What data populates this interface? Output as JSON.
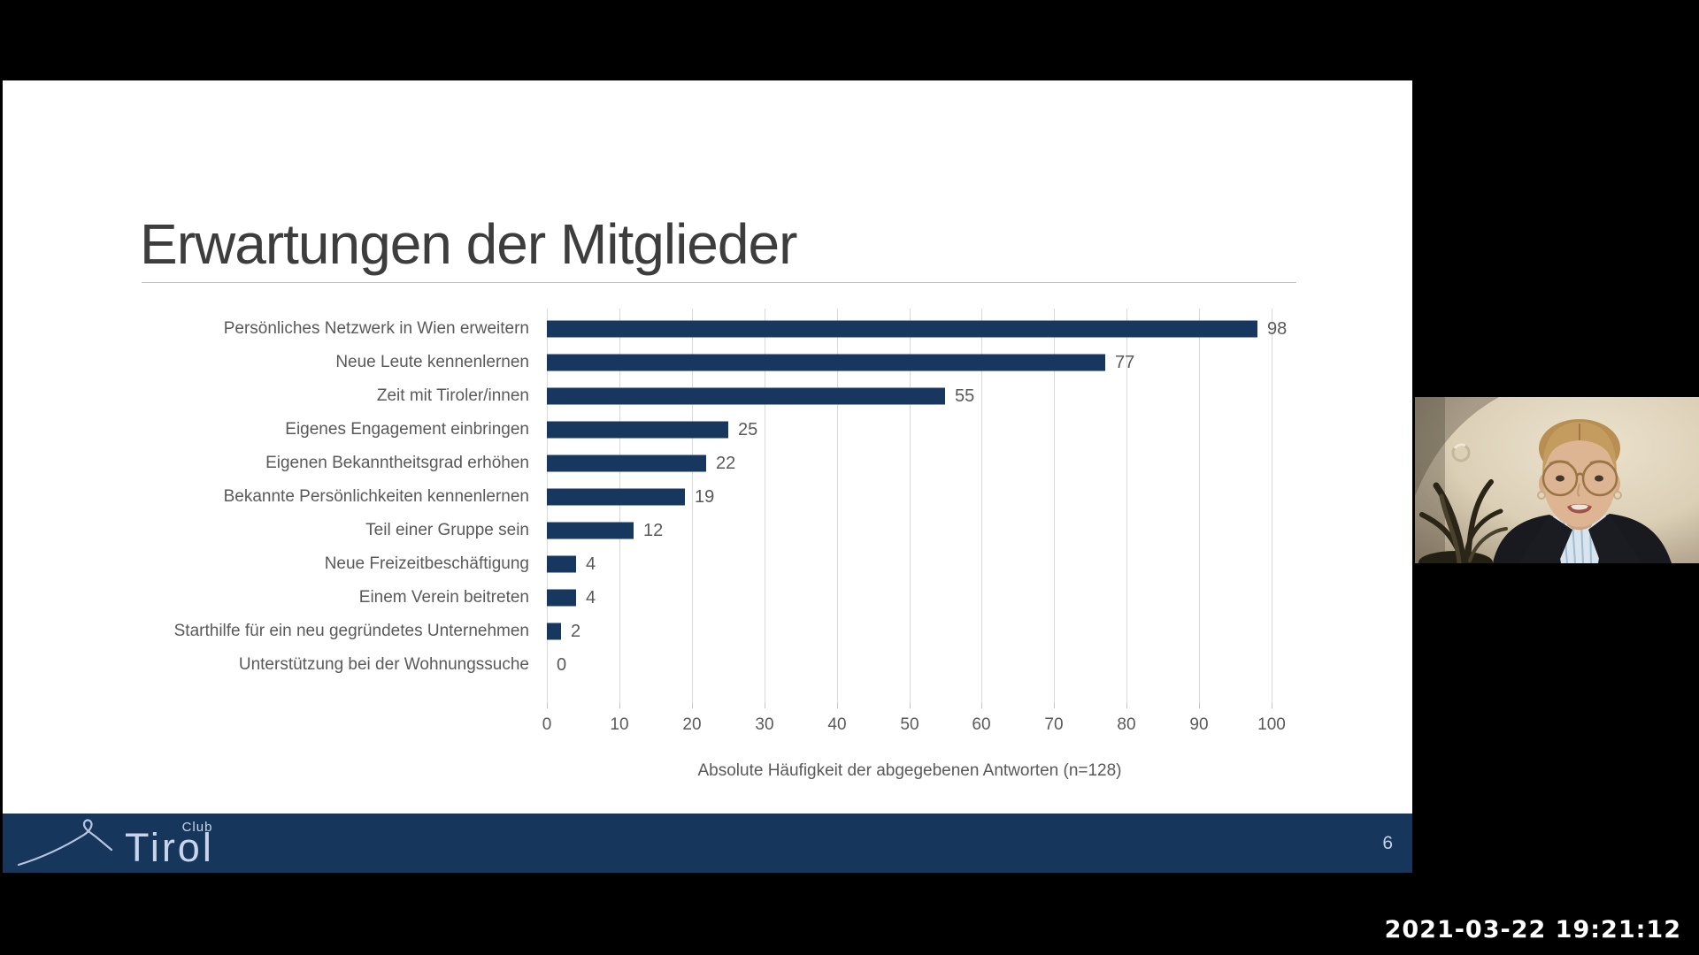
{
  "slide": {
    "title": "Erwartungen der Mitglieder",
    "footer": {
      "club": "Club",
      "name": "Tirol",
      "page_number": "6"
    }
  },
  "chart_data": {
    "type": "bar",
    "orientation": "horizontal",
    "categories": [
      "Persönliches Netzwerk in Wien erweitern",
      "Neue Leute kennenlernen",
      "Zeit mit Tiroler/innen",
      "Eigenes Engagement einbringen",
      "Eigenen Bekanntheitsgrad erhöhen",
      "Bekannte Persönlichkeiten kennenlernen",
      "Teil einer Gruppe sein",
      "Neue Freizeitbeschäftigung",
      "Einem Verein beitreten",
      "Starthilfe für ein neu gegründetes Unternehmen",
      "Unterstützung bei der Wohnungssuche"
    ],
    "values": [
      98,
      77,
      55,
      25,
      22,
      19,
      12,
      4,
      4,
      2,
      0
    ],
    "xlabel": "Absolute Häufigkeit der abgegebenen Antworten (n=128)",
    "xlim": [
      0,
      100
    ],
    "xticks": [
      0,
      10,
      20,
      30,
      40,
      50,
      60,
      70,
      80,
      90,
      100
    ],
    "grid": true,
    "legend": false,
    "bar_color": "#17375e",
    "grid_color": "#d9d9d9",
    "text_color": "#595959"
  },
  "colors": {
    "slide_background": "#ffffff",
    "screen_background": "#000000",
    "footer_bar": "#16365c",
    "logo_text": "#c7d4ec",
    "title_text": "#3d3d3d"
  },
  "overlay": {
    "timestamp": "2021-03-22 19:21:12"
  }
}
